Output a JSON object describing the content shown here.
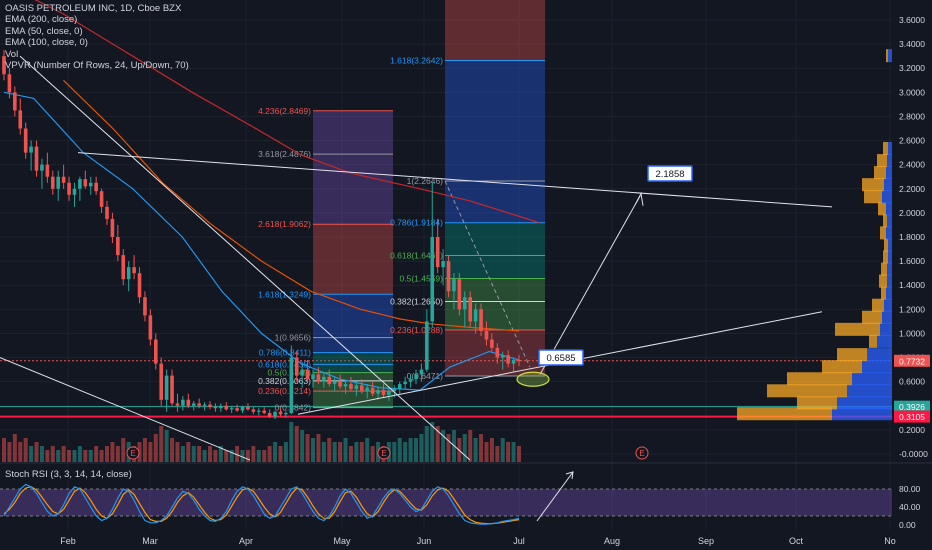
{
  "legend": {
    "title": "OASIS PETROLEUM INC, 1D, Cboe BZX",
    "lines": [
      "EMA (200, close)",
      "EMA (50, close, 0)",
      "EMA (100, close, 0)",
      "Vol",
      "VPVR (Number Of Rows, 24, Up/Down, 70)"
    ],
    "stoch": "Stoch RSI (3, 3, 14, 14, close)"
  },
  "colors": {
    "background": "#131722",
    "up": "#26a69a",
    "down": "#ef5350",
    "ema200": "#c62828",
    "ema50": "#2196f3",
    "ema100": "#e65100",
    "stoch_k": "#2196f3",
    "stoch_d": "#ff9800",
    "stoch_band": "#7e57c2",
    "vpvr_up": "#2962ff",
    "vpvr_down": "#f9a825",
    "support": "#ff1744",
    "trend": "#e0e3eb"
  },
  "chart_data": {
    "type": "candlestick",
    "symbol": "OASIS PETROLEUM INC",
    "interval": "1D",
    "x_axis": {
      "labels": [
        "Feb",
        "Mar",
        "Apr",
        "May",
        "Jun",
        "Jul",
        "Aug",
        "Sep",
        "Oct",
        "No"
      ]
    },
    "y_axis": {
      "range": [
        -0.1,
        3.75
      ],
      "ticks": [
        "3.6000",
        "3.4000",
        "3.2000",
        "3.0000",
        "2.8000",
        "2.6000",
        "2.4000",
        "2.2000",
        "2.0000",
        "1.8000",
        "1.6000",
        "1.4000",
        "1.2000",
        "1.0000",
        "0.8000",
        "0.6000",
        "0.4000",
        "0.2000",
        "-0.0000"
      ]
    },
    "price_labels": [
      {
        "text": "0.7732",
        "value": 0.7732,
        "color": "#ef5350"
      },
      {
        "text": "0.3926",
        "value": 0.3926,
        "color": "#26a69a"
      },
      {
        "text": "0.3105",
        "value": 0.3105,
        "color": "#ff1744"
      }
    ],
    "horizontal_lines": [
      {
        "value": 0.3926,
        "color": "#26a69a"
      },
      {
        "value": 0.3105,
        "color": "#ff1744"
      }
    ],
    "callouts": [
      {
        "text": "2.1858",
        "value": 2.1858
      },
      {
        "text": "0.6585",
        "value": 0.6585
      }
    ],
    "fib_extension_1": {
      "levels": [
        {
          "label": "4.236(2.8469)",
          "value": 2.8469,
          "color": "#ef5350"
        },
        {
          "label": "3.618(2.4876)",
          "value": 2.4876,
          "color": "#9598a1"
        },
        {
          "label": "2.618(1.9062)",
          "value": 1.9062,
          "color": "#ef5350"
        },
        {
          "label": "1.618(1.3249)",
          "value": 1.3249,
          "color": "#2196f3"
        },
        {
          "label": "1(0.9656)",
          "value": 0.9656,
          "color": "#9598a1"
        },
        {
          "label": "0.786(0.8411)",
          "value": 0.8411,
          "color": "#2196f3"
        },
        {
          "label": "0.618(0.7435)",
          "value": 0.7435,
          "color": "#2196f3"
        },
        {
          "label": "0.5(0.6749)",
          "value": 0.6749,
          "color": "#4caf50"
        },
        {
          "label": "0.382(0.6063)",
          "value": 0.6063,
          "color": "#d1d4dc"
        },
        {
          "label": "0.236(0.5214)",
          "value": 0.5214,
          "color": "#ef5350"
        },
        {
          "label": "0(0.3842)",
          "value": 0.3842,
          "color": "#9598a1"
        }
      ]
    },
    "fib_extension_2": {
      "levels": [
        {
          "label": "1.618(3.2642)",
          "value": 3.2642,
          "color": "#2196f3"
        },
        {
          "label": "1(2.2646)",
          "value": 2.2646,
          "color": "#9598a1"
        },
        {
          "label": "0.786(1.9184)",
          "value": 1.9184,
          "color": "#2196f3"
        },
        {
          "label": "0.618(1.6467)",
          "value": 1.6467,
          "color": "#4caf50"
        },
        {
          "label": "0.5(1.4559)",
          "value": 1.4559,
          "color": "#4caf50"
        },
        {
          "label": "0.382(1.2650)",
          "value": 1.265,
          "color": "#d1d4dc"
        },
        {
          "label": "0.236(1.0288)",
          "value": 1.0288,
          "color": "#ef5350"
        },
        {
          "label": "0(0.6471)",
          "value": 0.6471,
          "color": "#9598a1"
        }
      ]
    },
    "candles": [
      [
        3.3,
        3.35,
        3.1,
        3.15
      ],
      [
        3.15,
        3.2,
        2.95,
        3.0
      ],
      [
        3.0,
        3.05,
        2.8,
        2.85
      ],
      [
        2.85,
        2.95,
        2.65,
        2.7
      ],
      [
        2.7,
        2.75,
        2.45,
        2.5
      ],
      [
        2.5,
        2.6,
        2.35,
        2.55
      ],
      [
        2.55,
        2.6,
        2.3,
        2.35
      ],
      [
        2.35,
        2.45,
        2.2,
        2.4
      ],
      [
        2.4,
        2.5,
        2.25,
        2.3
      ],
      [
        2.3,
        2.35,
        2.15,
        2.2
      ],
      [
        2.2,
        2.35,
        2.1,
        2.3
      ],
      [
        2.3,
        2.4,
        2.2,
        2.25
      ],
      [
        2.25,
        2.3,
        2.1,
        2.15
      ],
      [
        2.15,
        2.25,
        2.05,
        2.2
      ],
      [
        2.2,
        2.3,
        2.1,
        2.28
      ],
      [
        2.28,
        2.35,
        2.2,
        2.22
      ],
      [
        2.22,
        2.3,
        2.15,
        2.25
      ],
      [
        2.25,
        2.3,
        2.15,
        2.18
      ],
      [
        2.18,
        2.2,
        2.0,
        2.05
      ],
      [
        2.05,
        2.1,
        1.9,
        1.95
      ],
      [
        1.95,
        2.0,
        1.75,
        1.8
      ],
      [
        1.8,
        1.9,
        1.6,
        1.65
      ],
      [
        1.65,
        1.7,
        1.4,
        1.45
      ],
      [
        1.45,
        1.6,
        1.35,
        1.55
      ],
      [
        1.55,
        1.65,
        1.45,
        1.5
      ],
      [
        1.5,
        1.55,
        1.25,
        1.3
      ],
      [
        1.3,
        1.35,
        1.1,
        1.15
      ],
      [
        1.15,
        1.2,
        0.9,
        0.95
      ],
      [
        0.95,
        1.0,
        0.7,
        0.75
      ],
      [
        0.75,
        0.8,
        0.4,
        0.45
      ],
      [
        0.45,
        0.7,
        0.35,
        0.65
      ],
      [
        0.65,
        0.7,
        0.4,
        0.42
      ],
      [
        0.42,
        0.5,
        0.35,
        0.4
      ],
      [
        0.4,
        0.48,
        0.36,
        0.45
      ],
      [
        0.45,
        0.5,
        0.38,
        0.4
      ],
      [
        0.4,
        0.44,
        0.36,
        0.42
      ],
      [
        0.42,
        0.46,
        0.38,
        0.4
      ],
      [
        0.4,
        0.43,
        0.36,
        0.41
      ],
      [
        0.41,
        0.44,
        0.37,
        0.39
      ],
      [
        0.39,
        0.42,
        0.35,
        0.38
      ],
      [
        0.38,
        0.42,
        0.35,
        0.4
      ],
      [
        0.4,
        0.43,
        0.36,
        0.37
      ],
      [
        0.37,
        0.4,
        0.34,
        0.38
      ],
      [
        0.38,
        0.41,
        0.35,
        0.36
      ],
      [
        0.36,
        0.4,
        0.34,
        0.39
      ],
      [
        0.39,
        0.42,
        0.36,
        0.37
      ],
      [
        0.37,
        0.39,
        0.33,
        0.35
      ],
      [
        0.35,
        0.38,
        0.32,
        0.36
      ],
      [
        0.36,
        0.39,
        0.33,
        0.34
      ],
      [
        0.34,
        0.37,
        0.3,
        0.31
      ],
      [
        0.31,
        0.36,
        0.29,
        0.35
      ],
      [
        0.35,
        0.38,
        0.31,
        0.33
      ],
      [
        0.33,
        0.36,
        0.3,
        0.34
      ],
      [
        0.34,
        0.9,
        0.33,
        0.8
      ],
      [
        0.8,
        0.85,
        0.6,
        0.65
      ],
      [
        0.65,
        0.75,
        0.55,
        0.7
      ],
      [
        0.7,
        0.78,
        0.6,
        0.62
      ],
      [
        0.62,
        0.7,
        0.55,
        0.66
      ],
      [
        0.66,
        0.72,
        0.58,
        0.6
      ],
      [
        0.6,
        0.68,
        0.55,
        0.64
      ],
      [
        0.64,
        0.7,
        0.56,
        0.58
      ],
      [
        0.58,
        0.64,
        0.52,
        0.6
      ],
      [
        0.6,
        0.66,
        0.54,
        0.56
      ],
      [
        0.56,
        0.62,
        0.5,
        0.58
      ],
      [
        0.58,
        0.64,
        0.52,
        0.54
      ],
      [
        0.54,
        0.6,
        0.48,
        0.57
      ],
      [
        0.57,
        0.62,
        0.5,
        0.52
      ],
      [
        0.52,
        0.58,
        0.46,
        0.55
      ],
      [
        0.55,
        0.6,
        0.48,
        0.5
      ],
      [
        0.5,
        0.56,
        0.45,
        0.53
      ],
      [
        0.53,
        0.58,
        0.47,
        0.49
      ],
      [
        0.49,
        0.55,
        0.44,
        0.52
      ],
      [
        0.52,
        0.57,
        0.47,
        0.54
      ],
      [
        0.54,
        0.6,
        0.5,
        0.58
      ],
      [
        0.58,
        0.64,
        0.54,
        0.6
      ],
      [
        0.6,
        0.66,
        0.55,
        0.62
      ],
      [
        0.62,
        0.7,
        0.58,
        0.66
      ],
      [
        0.66,
        0.75,
        0.6,
        0.7
      ],
      [
        0.7,
        1.2,
        0.68,
        1.1
      ],
      [
        1.1,
        2.26,
        1.05,
        1.8
      ],
      [
        1.8,
        1.95,
        1.5,
        1.55
      ],
      [
        1.55,
        1.7,
        1.4,
        1.6
      ],
      [
        1.6,
        1.65,
        1.3,
        1.35
      ],
      [
        1.35,
        1.5,
        1.2,
        1.45
      ],
      [
        1.45,
        1.5,
        1.15,
        1.2
      ],
      [
        1.2,
        1.35,
        1.05,
        1.3
      ],
      [
        1.3,
        1.35,
        1.05,
        1.1
      ],
      [
        1.1,
        1.25,
        1.0,
        1.2
      ],
      [
        1.2,
        1.25,
        0.98,
        1.02
      ],
      [
        1.02,
        1.1,
        0.9,
        0.95
      ],
      [
        0.95,
        1.0,
        0.85,
        0.88
      ],
      [
        0.88,
        0.92,
        0.75,
        0.8
      ],
      [
        0.8,
        0.85,
        0.7,
        0.82
      ],
      [
        0.82,
        0.86,
        0.72,
        0.75
      ],
      [
        0.75,
        0.8,
        0.68,
        0.78
      ],
      [
        0.78,
        0.82,
        0.73,
        0.7732
      ]
    ],
    "volume": [
      0.6,
      0.5,
      0.7,
      0.5,
      0.6,
      0.4,
      0.5,
      0.4,
      0.3,
      0.4,
      0.3,
      0.4,
      0.3,
      0.3,
      0.4,
      0.3,
      0.3,
      0.4,
      0.3,
      0.4,
      0.5,
      0.4,
      0.6,
      0.5,
      0.4,
      0.5,
      0.6,
      0.5,
      0.7,
      0.9,
      0.8,
      0.6,
      0.5,
      0.4,
      0.5,
      0.4,
      0.4,
      0.3,
      0.4,
      0.3,
      0.4,
      0.3,
      0.3,
      0.4,
      0.3,
      0.3,
      0.4,
      0.3,
      0.3,
      0.4,
      0.5,
      0.4,
      0.5,
      1.0,
      0.9,
      0.8,
      0.7,
      0.6,
      0.7,
      0.5,
      0.6,
      0.5,
      0.5,
      0.6,
      0.4,
      0.5,
      0.5,
      0.6,
      0.4,
      0.5,
      0.4,
      0.5,
      0.5,
      0.6,
      0.5,
      0.6,
      0.6,
      0.7,
      0.9,
      1.0,
      0.9,
      0.8,
      0.7,
      0.8,
      0.6,
      0.7,
      0.8,
      0.6,
      0.7,
      0.5,
      0.6,
      0.4,
      0.6,
      0.5,
      0.5,
      0.4
    ],
    "ema200": [
      [
        0,
        3.9
      ],
      [
        60,
        3.65
      ],
      [
        130,
        3.3
      ],
      [
        190,
        3.0
      ],
      [
        250,
        2.72
      ],
      [
        300,
        2.48
      ],
      [
        350,
        2.33
      ],
      [
        420,
        2.2
      ],
      [
        470,
        2.1
      ],
      [
        540,
        1.92
      ]
    ],
    "ema100": [
      [
        60,
        3.1
      ],
      [
        110,
        2.7
      ],
      [
        160,
        2.25
      ],
      [
        210,
        1.9
      ],
      [
        260,
        1.6
      ],
      [
        310,
        1.35
      ],
      [
        360,
        1.2
      ],
      [
        400,
        1.12
      ],
      [
        430,
        1.08
      ],
      [
        470,
        1.05
      ],
      [
        520,
        1.02
      ]
    ],
    "ema50": [
      [
        0,
        3.0
      ],
      [
        30,
        2.95
      ],
      [
        80,
        2.5
      ],
      [
        130,
        2.2
      ],
      [
        180,
        1.8
      ],
      [
        220,
        1.35
      ],
      [
        260,
        1.0
      ],
      [
        300,
        0.75
      ],
      [
        340,
        0.62
      ],
      [
        380,
        0.55
      ],
      [
        420,
        0.53
      ],
      [
        450,
        0.72
      ],
      [
        490,
        0.85
      ],
      [
        520,
        0.78
      ]
    ],
    "vpvr": [
      {
        "price": 0.33,
        "up": 60,
        "down": 95
      },
      {
        "price": 0.42,
        "up": 55,
        "down": 40
      },
      {
        "price": 0.52,
        "up": 45,
        "down": 80
      },
      {
        "price": 0.62,
        "up": 40,
        "down": 65
      },
      {
        "price": 0.72,
        "up": 30,
        "down": 40
      },
      {
        "price": 0.82,
        "up": 25,
        "down": 30
      },
      {
        "price": 0.93,
        "up": 15,
        "down": 8
      },
      {
        "price": 1.03,
        "up": 12,
        "down": 45
      },
      {
        "price": 1.13,
        "up": 10,
        "down": 20
      },
      {
        "price": 1.23,
        "up": 8,
        "down": 12
      },
      {
        "price": 1.33,
        "up": 6,
        "down": 5
      },
      {
        "price": 1.43,
        "up": 5,
        "down": 8
      },
      {
        "price": 1.53,
        "up": 5,
        "down": 6
      },
      {
        "price": 1.63,
        "up": 4,
        "down": 5
      },
      {
        "price": 1.73,
        "up": 4,
        "down": 4
      },
      {
        "price": 1.83,
        "up": 6,
        "down": 6
      },
      {
        "price": 1.93,
        "up": 5,
        "down": 4
      },
      {
        "price": 2.03,
        "up": 6,
        "down": 8
      },
      {
        "price": 2.13,
        "up": 10,
        "down": 18
      },
      {
        "price": 2.23,
        "up": 8,
        "down": 22
      },
      {
        "price": 2.33,
        "up": 6,
        "down": 12
      },
      {
        "price": 2.43,
        "up": 5,
        "down": 10
      },
      {
        "price": 2.53,
        "up": 4,
        "down": 5
      },
      {
        "price": 3.3,
        "up": 4,
        "down": 2
      }
    ],
    "stoch_rsi": {
      "y_range": [
        0,
        100
      ],
      "ticks": [
        "80.00",
        "40.00",
        "0.00"
      ],
      "band": [
        20,
        80
      ],
      "k": [
        20,
        40,
        60,
        80,
        90,
        85,
        70,
        50,
        30,
        20,
        25,
        45,
        70,
        85,
        80,
        60,
        40,
        20,
        10,
        15,
        35,
        60,
        80,
        75,
        55,
        30,
        10,
        5,
        5,
        10,
        20,
        40,
        60,
        75,
        70,
        55,
        35,
        20,
        10,
        8,
        15,
        30,
        55,
        75,
        85,
        80,
        65,
        45,
        25,
        15,
        20,
        40,
        60,
        80,
        85,
        70,
        50,
        30,
        15,
        10,
        20,
        40,
        65,
        80,
        70,
        50,
        30,
        15,
        20,
        40,
        60,
        75,
        80,
        70,
        55,
        40,
        30,
        35,
        55,
        75,
        85,
        80,
        65,
        45,
        25,
        10,
        5,
        3,
        2,
        2,
        3,
        5,
        8,
        10,
        12,
        15
      ],
      "d": [
        25,
        35,
        50,
        70,
        82,
        85,
        78,
        62,
        45,
        30,
        25,
        35,
        55,
        75,
        82,
        72,
        55,
        35,
        20,
        15,
        25,
        45,
        68,
        78,
        68,
        48,
        28,
        12,
        8,
        8,
        15,
        30,
        50,
        65,
        72,
        62,
        45,
        28,
        15,
        10,
        12,
        22,
        42,
        62,
        78,
        82,
        75,
        58,
        40,
        25,
        18,
        28,
        48,
        68,
        82,
        78,
        62,
        42,
        25,
        15,
        15,
        30,
        52,
        72,
        75,
        62,
        42,
        25,
        18,
        30,
        50,
        68,
        78,
        75,
        62,
        48,
        36,
        33,
        45,
        65,
        78,
        82,
        75,
        58,
        40,
        22,
        12,
        6,
        4,
        3,
        3,
        4,
        6,
        8,
        10,
        12
      ]
    }
  }
}
